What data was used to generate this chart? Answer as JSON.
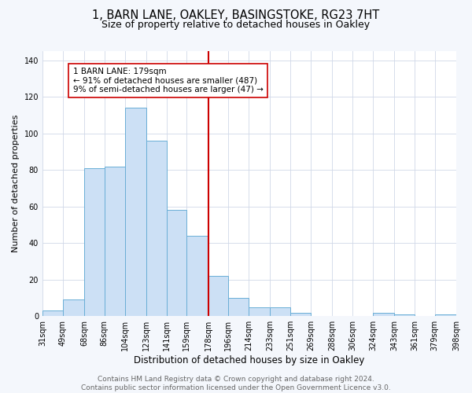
{
  "title": "1, BARN LANE, OAKLEY, BASINGSTOKE, RG23 7HT",
  "subtitle": "Size of property relative to detached houses in Oakley",
  "xlabel": "Distribution of detached houses by size in Oakley",
  "ylabel": "Number of detached properties",
  "bin_edges": [
    31,
    49,
    68,
    86,
    104,
    123,
    141,
    159,
    178,
    196,
    214,
    233,
    251,
    269,
    288,
    306,
    324,
    343,
    361,
    379,
    398
  ],
  "bin_counts": [
    3,
    9,
    81,
    82,
    114,
    96,
    58,
    44,
    22,
    10,
    5,
    5,
    2,
    0,
    0,
    0,
    2,
    1,
    0,
    1
  ],
  "bar_facecolor": "#cce0f5",
  "bar_edgecolor": "#6aaed6",
  "vline_x": 178,
  "vline_color": "#cc0000",
  "annotation_box_text": "1 BARN LANE: 179sqm\n← 91% of detached houses are smaller (487)\n9% of semi-detached houses are larger (47) →",
  "annotation_box_facecolor": "#ffffff",
  "annotation_box_edgecolor": "#cc0000",
  "ylim": [
    0,
    145
  ],
  "yticks": [
    0,
    20,
    40,
    60,
    80,
    100,
    120,
    140
  ],
  "tick_labels": [
    "31sqm",
    "49sqm",
    "68sqm",
    "86sqm",
    "104sqm",
    "123sqm",
    "141sqm",
    "159sqm",
    "178sqm",
    "196sqm",
    "214sqm",
    "233sqm",
    "251sqm",
    "269sqm",
    "288sqm",
    "306sqm",
    "324sqm",
    "343sqm",
    "361sqm",
    "379sqm",
    "398sqm"
  ],
  "grid_color": "#d0d8e8",
  "axes_facecolor": "#ffffff",
  "figure_facecolor": "#f4f7fc",
  "footer_text": "Contains HM Land Registry data © Crown copyright and database right 2024.\nContains public sector information licensed under the Open Government Licence v3.0.",
  "title_fontsize": 10.5,
  "subtitle_fontsize": 9,
  "xlabel_fontsize": 8.5,
  "ylabel_fontsize": 8,
  "tick_fontsize": 7,
  "footer_fontsize": 6.5,
  "annot_fontsize": 7.5
}
